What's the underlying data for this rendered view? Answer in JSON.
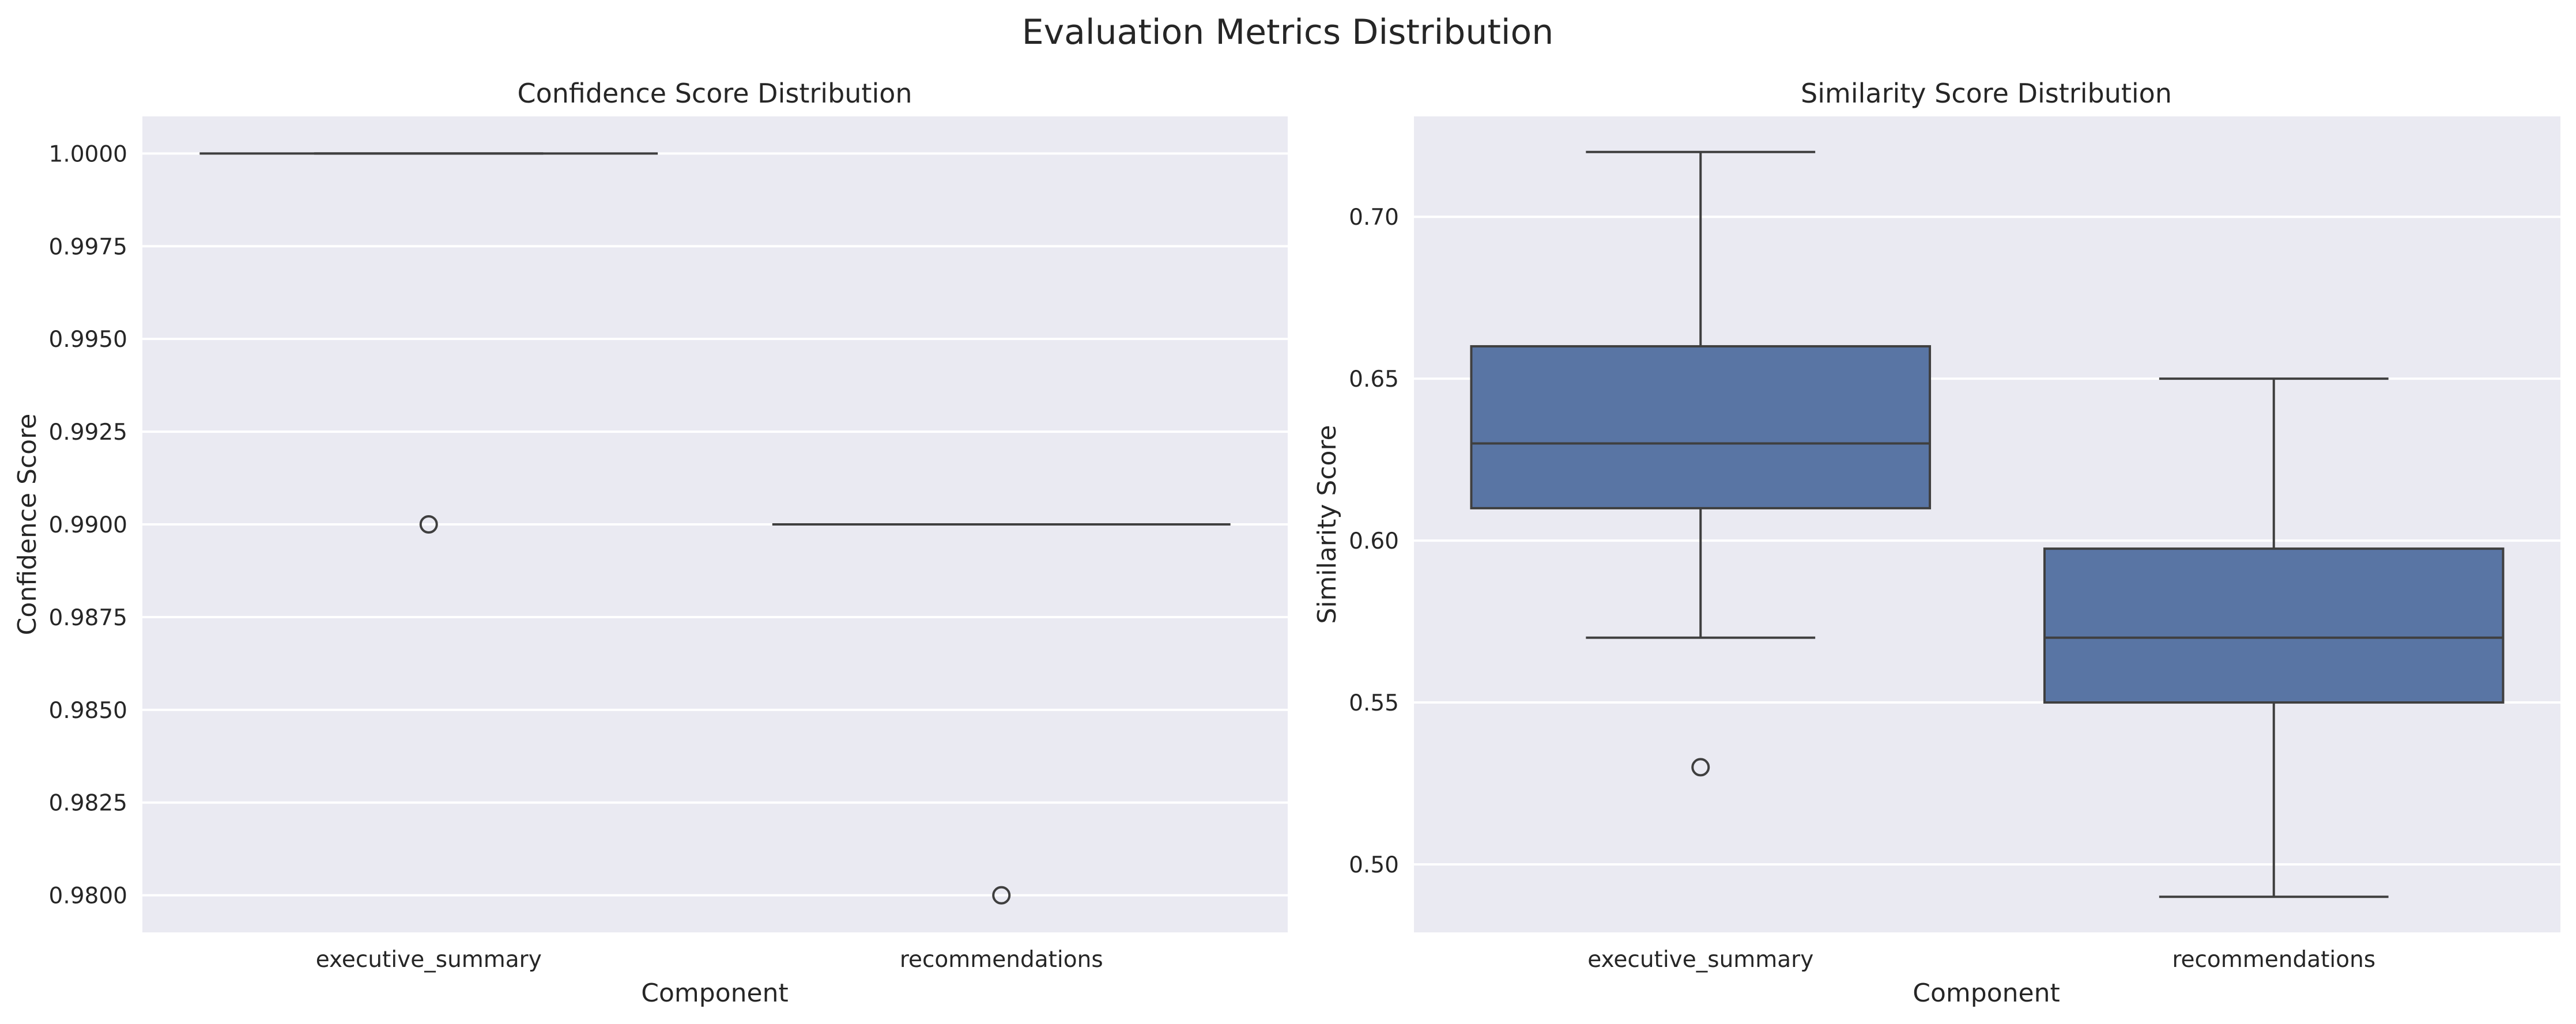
{
  "figure": {
    "title": "Evaluation Metrics Distribution"
  },
  "chart_data": [
    {
      "type": "box",
      "title": "Confidence Score Distribution",
      "xlabel": "Component",
      "ylabel": "Confidence Score",
      "categories": [
        "executive_summary",
        "recommendations"
      ],
      "ylim": [
        0.979,
        1.001
      ],
      "yticks": [
        0.98,
        0.9825,
        0.985,
        0.9875,
        0.99,
        0.9925,
        0.995,
        0.9975,
        1.0
      ],
      "ytick_labels": [
        "0.9800",
        "0.9825",
        "0.9850",
        "0.9875",
        "0.9900",
        "0.9925",
        "0.9950",
        "0.9975",
        "1.0000"
      ],
      "grid": true,
      "boxes": [
        {
          "category": "executive_summary",
          "whislo": 1.0,
          "q1": 1.0,
          "med": 1.0,
          "q3": 1.0,
          "whishi": 1.0,
          "fliers": [
            0.99
          ]
        },
        {
          "category": "recommendations",
          "whislo": 0.99,
          "q1": 0.99,
          "med": 0.99,
          "q3": 0.99,
          "whishi": 0.99,
          "fliers": [
            0.98
          ]
        }
      ],
      "box_color": "#5975a4"
    },
    {
      "type": "box",
      "title": "Similarity Score Distribution",
      "xlabel": "Component",
      "ylabel": "Similarity Score",
      "categories": [
        "executive_summary",
        "recommendations"
      ],
      "ylim": [
        0.479,
        0.731
      ],
      "yticks": [
        0.5,
        0.55,
        0.6,
        0.65,
        0.7
      ],
      "ytick_labels": [
        "0.50",
        "0.55",
        "0.60",
        "0.65",
        "0.70"
      ],
      "grid": true,
      "boxes": [
        {
          "category": "executive_summary",
          "whislo": 0.57,
          "q1": 0.61,
          "med": 0.63,
          "q3": 0.66,
          "whishi": 0.72,
          "fliers": [
            0.53
          ]
        },
        {
          "category": "recommendations",
          "whislo": 0.49,
          "q1": 0.55,
          "med": 0.57,
          "q3": 0.5975,
          "whishi": 0.65,
          "fliers": []
        }
      ],
      "box_color": "#5975a4"
    }
  ]
}
